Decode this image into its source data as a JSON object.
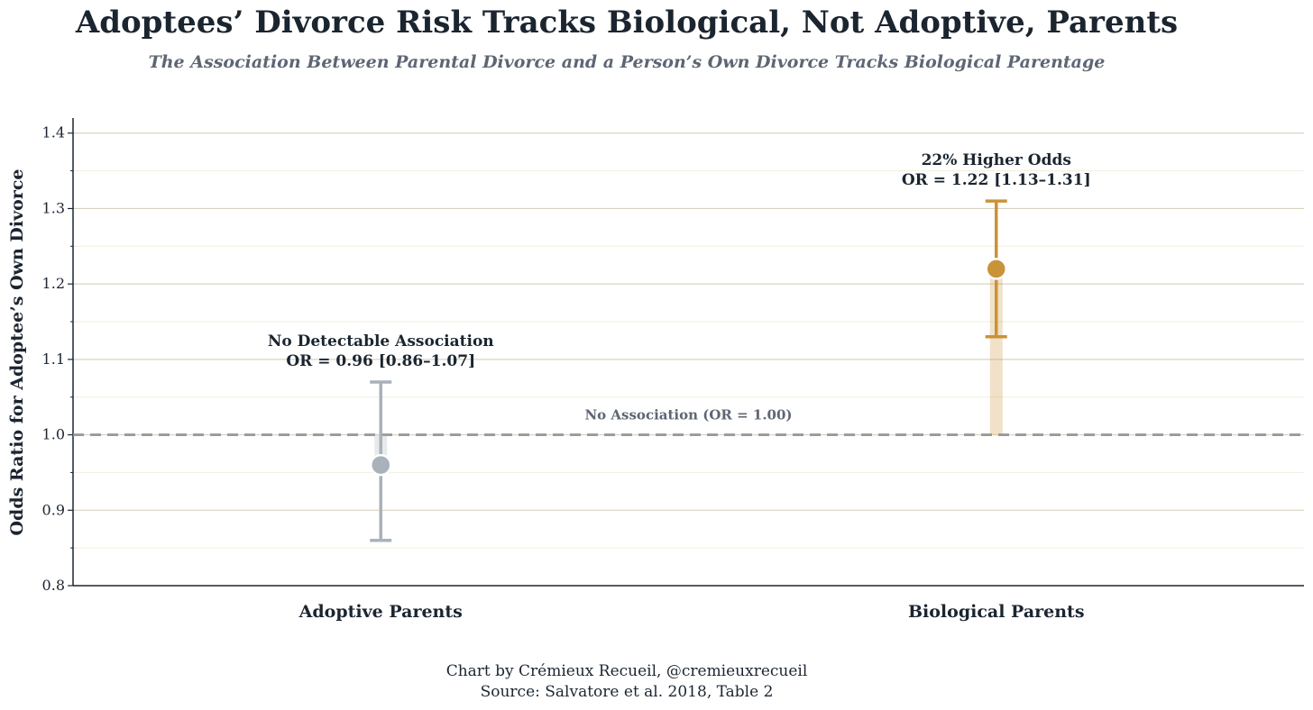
{
  "chart_data": {
    "type": "scatter",
    "title": "Adoptees’ Divorce Risk Tracks Biological, Not Adoptive, Parents",
    "subtitle": "The Association Between Parental Divorce and a Person’s Own Divorce Tracks Biological Parentage",
    "ylabel": "Odds Ratio for Adoptee’s Own Divorce",
    "xlabel": "",
    "ylim": [
      0.8,
      1.42
    ],
    "yticks": [
      "0.8",
      "0.9",
      "1.0",
      "1.1",
      "1.2",
      "1.3",
      "1.4"
    ],
    "grid": true,
    "categories": [
      "Adoptive Parents",
      "Biological Parents"
    ],
    "points": [
      {
        "category": "Adoptive Parents",
        "value": 0.96,
        "ci_low": 0.86,
        "ci_high": 1.07,
        "color": "#a9b2ba",
        "label_line1": "No Detectable Association",
        "label_line2": "OR = 0.96 [0.86–1.07]"
      },
      {
        "category": "Biological Parents",
        "value": 1.22,
        "ci_low": 1.13,
        "ci_high": 1.31,
        "color": "#c9933a",
        "label_line1": "22% Higher Odds",
        "label_line2": "OR = 1.22 [1.13–1.31]"
      }
    ],
    "reference_line": {
      "value": 1.0,
      "label": "No Association (OR = 1.00)",
      "color": "#999999"
    },
    "credit_line1": "Chart by Crémieux Recueil, @cremieuxrecueil",
    "credit_line2": "Source: Salvatore et al. 2018, Table 2"
  }
}
